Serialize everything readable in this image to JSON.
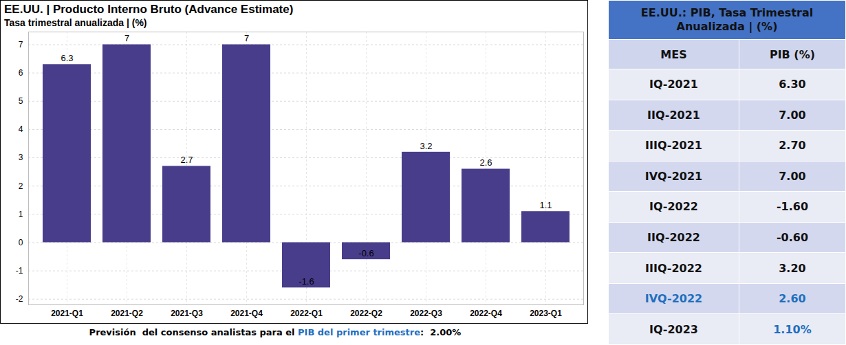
{
  "chart_data": {
    "type": "bar",
    "title": "EE.UU. | Producto Interno Bruto (Advance Estimate)",
    "subtitle": "Tasa trimestral anualizada | (%)",
    "categories": [
      "2021-Q1",
      "2021-Q2",
      "2021-Q3",
      "2021-Q4",
      "2022-Q1",
      "2022-Q2",
      "2022-Q3",
      "2022-Q4",
      "2023-Q1"
    ],
    "values": [
      6.3,
      7,
      2.7,
      7,
      -1.6,
      -0.6,
      3.2,
      2.6,
      1.1
    ],
    "color": "#483d8b",
    "ylim": [
      -2.2,
      7.45
    ],
    "yticks": [
      -2,
      -1,
      0,
      1,
      2,
      3,
      4,
      5,
      6,
      7
    ],
    "grid": true,
    "data_labels": true,
    "caption": [
      "Previsión  del consenso analistas para el ",
      "PIB del primer trimestre",
      ":  2.00%"
    ]
  },
  "table": {
    "title": "EE.UU.: PIB, Tasa Trimestral Anualizada | (%)",
    "columns": [
      "MES",
      "PIB (%)"
    ],
    "rows": [
      [
        "IQ-2021",
        "6.30"
      ],
      [
        "IIQ-2021",
        "7.00"
      ],
      [
        "IIIQ-2021",
        "2.70"
      ],
      [
        "IVQ-2021",
        "7.00"
      ],
      [
        "IQ-2022",
        "-1.60"
      ],
      [
        "IIQ-2022",
        "-0.60"
      ],
      [
        "IIIQ-2022",
        "3.20"
      ],
      [
        "IVQ-2022",
        "2.60"
      ],
      [
        "IQ-2023",
        "1.10%"
      ]
    ],
    "highlight_color": "#1f6fbf",
    "highlight_cells": [
      [
        7,
        0
      ],
      [
        7,
        1
      ],
      [
        8,
        1
      ]
    ]
  }
}
